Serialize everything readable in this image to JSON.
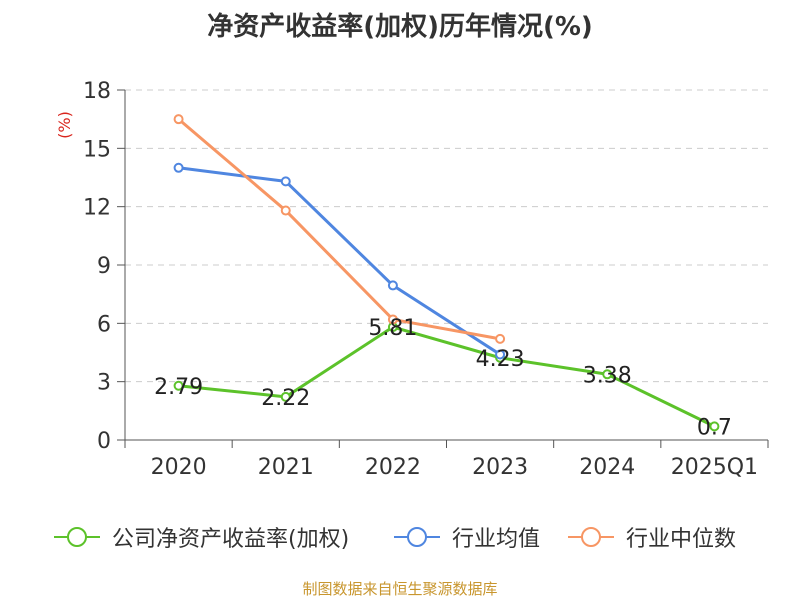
{
  "chart_data": {
    "type": "line",
    "title": "净资产收益率(加权)历年情况(%)",
    "ylabel": "(%)",
    "categories": [
      "2020",
      "2021",
      "2022",
      "2023",
      "2024",
      "2025Q1"
    ],
    "ylim": [
      0,
      18
    ],
    "yticks": [
      0,
      3,
      6,
      9,
      12,
      15,
      18
    ],
    "ytick_labels": [
      "0",
      "3",
      "6",
      "9",
      "12",
      "15",
      "18"
    ],
    "grid": true,
    "series": [
      {
        "name": "公司净资产收益率(加权)",
        "color": "#5cc22a",
        "values": [
          2.79,
          2.22,
          5.81,
          4.23,
          3.38,
          0.7
        ],
        "labels": [
          "2.79",
          "2.22",
          "5.81",
          "4.23",
          "3.38",
          "0.7"
        ]
      },
      {
        "name": "行业均值",
        "color": "#4f86e0",
        "values": [
          14.0,
          13.3,
          7.95,
          4.4,
          null,
          null
        ]
      },
      {
        "name": "行业中位数",
        "color": "#f79664",
        "values": [
          16.5,
          11.8,
          6.2,
          5.2,
          null,
          null
        ]
      }
    ]
  },
  "legend": {
    "company": "公司净资产收益率(加权)",
    "avg": "行业均值",
    "median": "行业中位数"
  },
  "source": "制图数据来自恒生聚源数据库"
}
